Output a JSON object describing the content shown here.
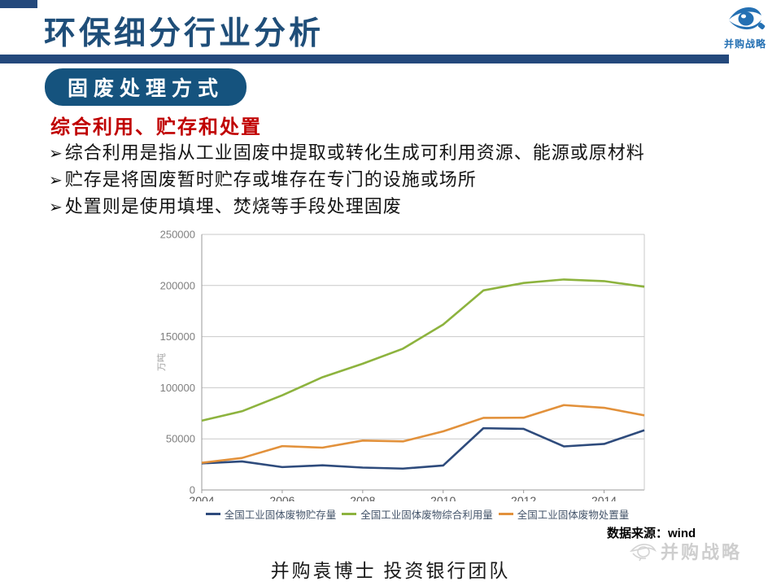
{
  "slide": {
    "title": "环保细分行业分析",
    "badge": "固废处理方式",
    "heading": "综合利用、贮存和处置",
    "bullet_marker": "➢",
    "bullets": [
      "综合利用是指从工业固废中提取或转化生成可利用资源、能源或原材料",
      "贮存是将固废暂时贮存或堆存在专门的设施或场所",
      "处置则是使用填埋、焚烧等手段处理固废"
    ],
    "data_source": "数据来源：wind",
    "footer": "并购袁博士 投资银行团队",
    "logo_text": "并购战略",
    "watermark_text": "并购战略",
    "colors": {
      "navy": "#24497C",
      "title": "#1F4E79",
      "red": "#C00000",
      "logo_blue": "#2470B3"
    }
  },
  "chart_data": {
    "type": "line",
    "x": [
      2004,
      2005,
      2006,
      2007,
      2008,
      2009,
      2010,
      2011,
      2012,
      2013,
      2014,
      2015
    ],
    "series": [
      {
        "name": "全国工业固体废物贮存量",
        "color": "#2E4B7C",
        "values": [
          26000,
          27900,
          22400,
          24100,
          21900,
          20900,
          23900,
          60400,
          59800,
          42600,
          45000,
          58400
        ]
      },
      {
        "name": "全国工业固体废物综合利用量",
        "color": "#8DB33E",
        "values": [
          67800,
          77000,
          92600,
          110300,
          123500,
          138200,
          161800,
          195200,
          202500,
          205900,
          204300,
          198800
        ]
      },
      {
        "name": "全国工业固体废物处置量",
        "color": "#E2913B",
        "values": [
          26600,
          31300,
          42900,
          41400,
          48300,
          47500,
          57300,
          70500,
          70700,
          83000,
          80400,
          73000
        ]
      }
    ],
    "title": "",
    "xlabel": "",
    "ylabel": "万吨",
    "ylim": [
      0,
      250000
    ],
    "yticks": [
      0,
      50000,
      100000,
      150000,
      200000,
      250000
    ],
    "xticks": [
      2004,
      2006,
      2008,
      2010,
      2012,
      2014
    ],
    "grid": true,
    "legend_position": "bottom"
  }
}
